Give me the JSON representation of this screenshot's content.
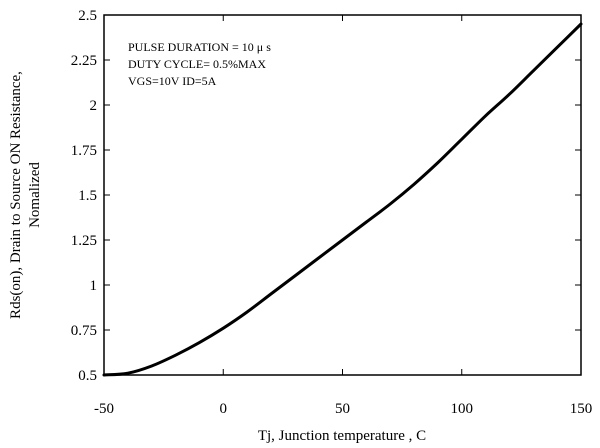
{
  "chart_data": {
    "type": "line",
    "title": "",
    "xlabel": "Tj, Junction temperature , C",
    "ylabel": [
      "Rds(on), Drain to Source ON Resistance,",
      "Nomalized"
    ],
    "xlim": [
      -50,
      150
    ],
    "ylim": [
      0.5,
      2.5
    ],
    "grid": false,
    "x_ticks": [
      "-50",
      "0",
      "50",
      "100",
      "150"
    ],
    "y_ticks": [
      "0.5",
      "0.75",
      "1",
      "1.25",
      "1.5",
      "1.75",
      "2",
      "2.25",
      "2.5"
    ],
    "x_tick_values": [
      -50,
      0,
      50,
      100,
      150
    ],
    "y_tick_values": [
      0.5,
      0.75,
      1,
      1.25,
      1.5,
      1.75,
      2,
      2.25,
      2.5
    ],
    "annotations": [
      "PULSE   DURATION = 10 μ s",
      "DUTY   CYCLE= 0.5%MAX",
      "VGS=10V   ID=5A"
    ],
    "series": [
      {
        "x": [
          -50,
          -40,
          -30,
          -20,
          -10,
          0,
          10,
          20,
          30,
          40,
          50,
          60,
          70,
          80,
          90,
          100,
          110,
          120,
          130,
          140,
          150
        ],
        "y": [
          0.5,
          0.51,
          0.55,
          0.61,
          0.68,
          0.76,
          0.85,
          0.95,
          1.05,
          1.15,
          1.25,
          1.35,
          1.45,
          1.56,
          1.68,
          1.81,
          1.94,
          2.06,
          2.19,
          2.32,
          2.45
        ]
      }
    ]
  }
}
